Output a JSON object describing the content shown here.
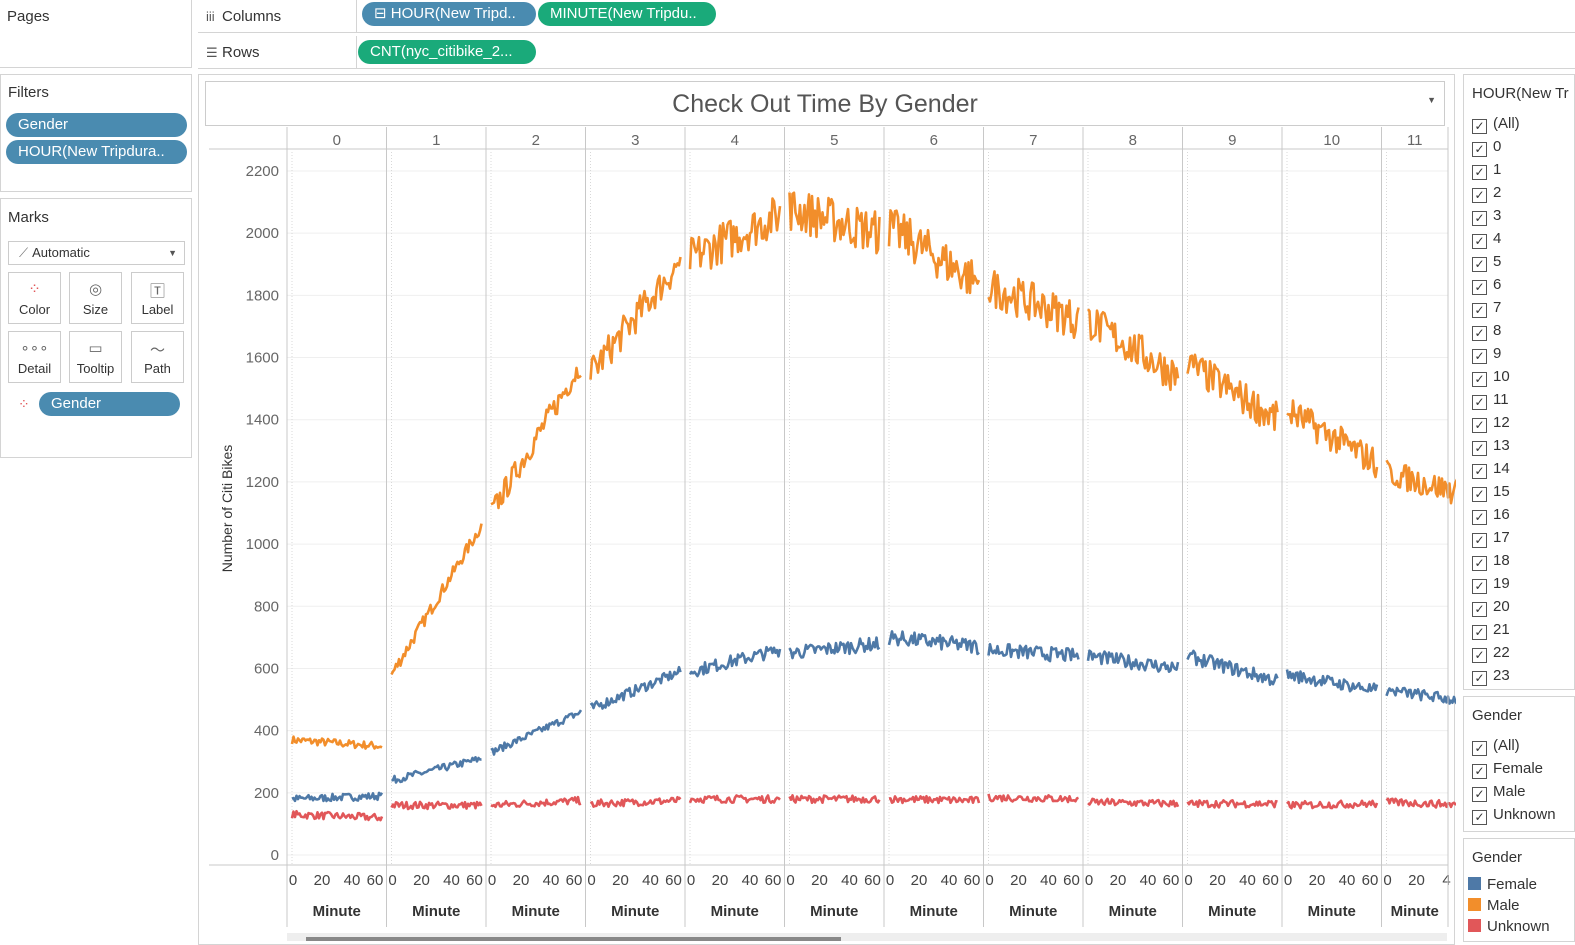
{
  "shelves": {
    "pages_label": "Pages",
    "columns_label": "Columns",
    "rows_label": "Rows",
    "columns_pills": [
      "⊟ HOUR(New Tripd..",
      "MINUTE(New Tripdu.."
    ],
    "rows_pills": [
      "CNT(nyc_citibike_2..."
    ]
  },
  "filters": {
    "title": "Filters",
    "items": [
      "Gender",
      "HOUR(New Tripdura.."
    ]
  },
  "marks": {
    "title": "Marks",
    "type_dropdown": "Automatic",
    "buttons": [
      {
        "label": "Color",
        "icon": "color-icon"
      },
      {
        "label": "Size",
        "icon": "size-icon"
      },
      {
        "label": "Label",
        "icon": "label-icon"
      },
      {
        "label": "Detail",
        "icon": "detail-icon"
      },
      {
        "label": "Tooltip",
        "icon": "tooltip-icon"
      },
      {
        "label": "Path",
        "icon": "path-icon"
      }
    ],
    "color_field": "Gender"
  },
  "hour_filter": {
    "title": "HOUR(New Tr",
    "items": [
      "(All)",
      "0",
      "1",
      "2",
      "3",
      "4",
      "5",
      "6",
      "7",
      "8",
      "9",
      "10",
      "11",
      "12",
      "13",
      "14",
      "15",
      "16",
      "17",
      "18",
      "19",
      "20",
      "21",
      "22",
      "23"
    ]
  },
  "gender_filter": {
    "title": "Gender",
    "items": [
      "(All)",
      "Female",
      "Male",
      "Unknown"
    ]
  },
  "gender_legend": {
    "title": "Gender",
    "items": [
      {
        "label": "Female",
        "color": "#4e79a7"
      },
      {
        "label": "Male",
        "color": "#f28e2b"
      },
      {
        "label": "Unknown",
        "color": "#e15759"
      }
    ]
  },
  "chart_data": {
    "type": "line",
    "title": "Check Out Time By Gender",
    "ylabel": "Number of Citi Bikes",
    "xlabel": "Minute",
    "ylim": [
      0,
      2200
    ],
    "y_ticks": [
      0,
      200,
      400,
      600,
      800,
      1000,
      1200,
      1400,
      1600,
      1800,
      2000,
      2200
    ],
    "x_ticks": [
      "0",
      "20",
      "40",
      "60"
    ],
    "panels": [
      "0",
      "1",
      "2",
      "3",
      "4",
      "5",
      "6",
      "7",
      "8",
      "9",
      "10",
      "11"
    ],
    "last_panel_x_ticks": [
      "0",
      "20",
      "4"
    ],
    "series": [
      {
        "name": "Male",
        "color": "#f28e2b",
        "start": [
          370,
          580,
          1100,
          1550,
          1920,
          2080,
          2020,
          1830,
          1720,
          1580,
          1430,
          1230
        ],
        "end": [
          350,
          1060,
          1580,
          1910,
          2060,
          2000,
          1840,
          1720,
          1540,
          1400,
          1260,
          1150
        ]
      },
      {
        "name": "Female",
        "color": "#4e79a7",
        "start": [
          180,
          240,
          330,
          470,
          590,
          650,
          700,
          660,
          640,
          640,
          580,
          530
        ],
        "end": [
          190,
          310,
          460,
          590,
          660,
          680,
          670,
          640,
          600,
          560,
          530,
          490
        ]
      },
      {
        "name": "Unknown",
        "color": "#e15759",
        "start": [
          130,
          160,
          160,
          165,
          180,
          180,
          180,
          185,
          170,
          165,
          160,
          170
        ],
        "end": [
          120,
          160,
          175,
          175,
          180,
          180,
          175,
          180,
          165,
          165,
          165,
          160
        ]
      }
    ]
  }
}
